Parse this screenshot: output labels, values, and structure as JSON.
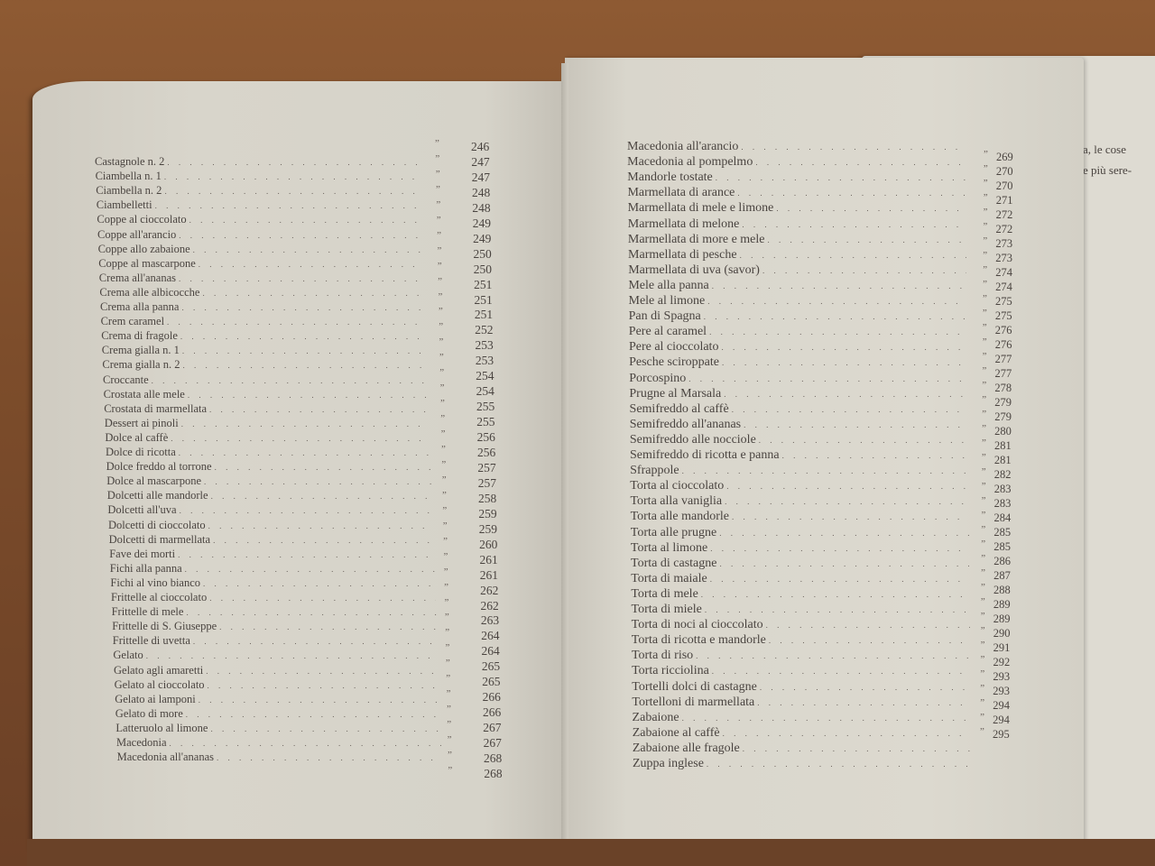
{
  "left_page": {
    "ditto": "”",
    "labels": [
      "Castagnole n. 2",
      "Ciambella n. 1",
      "Ciambella n. 2",
      "Ciambelletti",
      "Coppe al cioccolato",
      "Coppe all'arancio",
      "Coppe allo zabaione",
      "Coppe al mascarpone",
      "Crema all'ananas",
      "Crema alle albicocche",
      "Crema alla panna",
      "Crem caramel",
      "Crema di fragole",
      "Crema gialla n. 1",
      "Crema gialla n. 2",
      "Croccante",
      "Crostata alle mele",
      "Crostata di marmellata",
      "Dessert ai pinoli",
      "Dolce al caffè",
      "Dolce di ricotta",
      "Dolce freddo al torrone",
      "Dolce al mascarpone",
      "Dolcetti alle mandorle",
      "Dolcetti all'uva",
      "Dolcetti di cioccolato",
      "Dolcetti di marmellata",
      "Fave dei morti",
      "Fichi alla panna",
      "Fichi al vino bianco",
      "Frittelle al cioccolato",
      "Frittelle di mele",
      "Frittelle di S. Giuseppe",
      "Frittelle di uvetta",
      "Gelato",
      "Gelato agli amaretti",
      "Gelato al cioccolato",
      "Gelato ai lamponi",
      "Gelato di more",
      "Latteruolo al limone",
      "Macedonia",
      "Macedonia all'ananas"
    ],
    "pages": [
      "246",
      "247",
      "247",
      "248",
      "248",
      "249",
      "249",
      "250",
      "250",
      "251",
      "251",
      "251",
      "252",
      "253",
      "253",
      "254",
      "254",
      "255",
      "255",
      "256",
      "256",
      "257",
      "257",
      "258",
      "259",
      "259",
      "260",
      "261",
      "261",
      "262",
      "262",
      "263",
      "264",
      "264",
      "265",
      "265",
      "266",
      "266",
      "267",
      "267",
      "268",
      "268"
    ]
  },
  "right_page": {
    "ditto": "”",
    "labels": [
      "Macedonia all'arancio",
      "Macedonia al pompelmo",
      "Mandorle tostate",
      "Marmellata di arance",
      "Marmellata di mele e limone",
      "Marmellata di melone",
      "Marmellata di more e mele",
      "Marmellata di pesche",
      "Marmellata di uva (savor)",
      "Mele alla panna",
      "Mele al limone",
      "Pan di Spagna",
      "Pere al caramel",
      "Pere al cioccolato",
      "Pesche sciroppate",
      "Porcospino",
      "Prugne al Marsala",
      "Semifreddo al caffè",
      "Semifreddo all'ananas",
      "Semifreddo alle nocciole",
      "Semifreddo di ricotta e panna",
      "Sfrappole",
      "Torta al cioccolato",
      "Torta alla vaniglia",
      "Torta alle mandorle",
      "Torta alle prugne",
      "Torta al limone",
      "Torta di castagne",
      "Torta di maiale",
      "Torta di mele",
      "Torta di miele",
      "Torta di noci al cioccolato",
      "Torta di ricotta e mandorle",
      "Torta di riso",
      "Torta ricciolina",
      "Tortelli dolci di castagne",
      "Tortelloni di marmellata",
      "Zabaione",
      "Zabaione al caffè",
      "Zabaione alle fragole",
      "Zuppa inglese"
    ],
    "pages": [
      "269",
      "270",
      "270",
      "271",
      "272",
      "272",
      "273",
      "273",
      "274",
      "274",
      "275",
      "275",
      "276",
      "276",
      "277",
      "277",
      "278",
      "279",
      "279",
      "280",
      "281",
      "281",
      "282",
      "283",
      "283",
      "284",
      "285",
      "285",
      "286",
      "287",
      "288",
      "289",
      "289",
      "290",
      "291",
      "292",
      "293",
      "293",
      "294",
      "294",
      "295"
    ]
  },
  "next_page": {
    "lines": [
      "a,  le cose",
      "e più sere-"
    ]
  }
}
